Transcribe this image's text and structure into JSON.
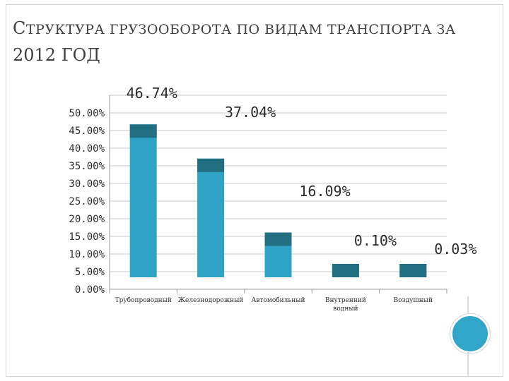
{
  "slide": {
    "title_line1_cap": "С",
    "title_line1_rest": "ТРУКТУРА ГРУЗООБОРОТА ПО ВИДАМ ТРАНСПОРТА ЗА",
    "title_line2": "2012 ГОД"
  },
  "colors": {
    "bar": "#2fa3c6",
    "bar_cap": "#236f82",
    "grid": "#c8c8c8",
    "text": "#2b2b2b",
    "deco_circle": "#31a6c9"
  },
  "chart_data": {
    "type": "bar",
    "categories": [
      "Трубопроводный",
      "Железнодорожный",
      "Автомобильный",
      "Внутренний водный",
      "Воздушный"
    ],
    "category_lines": [
      [
        "Трубопроводный"
      ],
      [
        "Железнодорожный"
      ],
      [
        "Автомобильный"
      ],
      [
        "Внутренний",
        "водный"
      ],
      [
        "Воздушный"
      ]
    ],
    "values": [
      46.74,
      37.04,
      16.09,
      0.1,
      0.03
    ],
    "data_labels": [
      "46.74%",
      "37.04%",
      "16.09%",
      "0.10%",
      "0.03%"
    ],
    "y_ticks": [
      0,
      5,
      10,
      15,
      20,
      25,
      30,
      35,
      40,
      45,
      50
    ],
    "y_tick_labels": [
      "0.00%",
      "5.00%",
      "10.00%",
      "15.00%",
      "20.00%",
      "25.00%",
      "30.00%",
      "35.00%",
      "40.00%",
      "45.00%",
      "50.00%"
    ],
    "ylim": [
      0,
      55
    ],
    "grid": true,
    "legend": "none"
  }
}
